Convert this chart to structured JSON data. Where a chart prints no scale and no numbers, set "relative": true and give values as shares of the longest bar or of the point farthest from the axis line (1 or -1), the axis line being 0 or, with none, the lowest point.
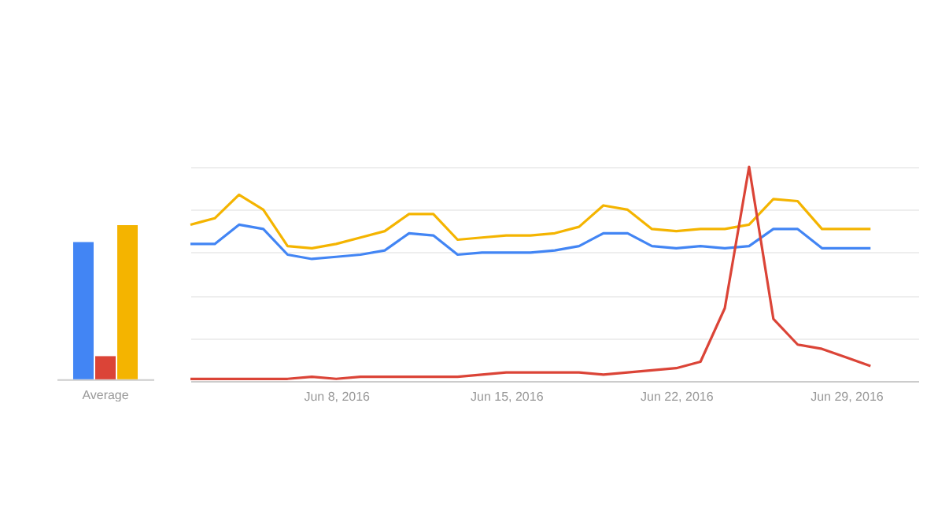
{
  "chart_data": [
    {
      "type": "bar",
      "relative": true,
      "categories": [
        "Average"
      ],
      "legend": false,
      "series": [
        {
          "color": "#4285f4",
          "values": [
            0.89
          ]
        },
        {
          "color": "#db4437",
          "values": [
            0.15
          ]
        },
        {
          "color": "#f4b400",
          "values": [
            1
          ]
        }
      ]
    },
    {
      "type": "line",
      "relative": true,
      "grid": "y",
      "legend": false,
      "line_style": "solid",
      "marker": "none",
      "x": [
        "2016-06-02",
        "2016-06-03",
        "2016-06-04",
        "2016-06-05",
        "2016-06-06",
        "2016-06-07",
        "2016-06-08",
        "2016-06-09",
        "2016-06-10",
        "2016-06-11",
        "2016-06-12",
        "2016-06-13",
        "2016-06-14",
        "2016-06-15",
        "2016-06-16",
        "2016-06-17",
        "2016-06-18",
        "2016-06-19",
        "2016-06-20",
        "2016-06-21",
        "2016-06-22",
        "2016-06-23",
        "2016-06-24",
        "2016-06-25",
        "2016-06-26",
        "2016-06-27",
        "2016-06-28",
        "2016-06-29",
        "2016-06-30"
      ],
      "xlim": [
        "2016-06-02",
        "2016-07-02"
      ],
      "xticks": [
        {
          "value": "2016-06-08",
          "label": "Jun 8, 2016"
        },
        {
          "value": "2016-06-15",
          "label": "Jun 15, 2016"
        },
        {
          "value": "2016-06-22",
          "label": "Jun 22, 2016"
        },
        {
          "value": "2016-06-29",
          "label": "Jun 29, 2016"
        }
      ],
      "series": [
        {
          "color": "#f4b400",
          "values": [
            0.73,
            0.76,
            0.87,
            0.8,
            0.63,
            0.62,
            0.64,
            0.67,
            0.7,
            0.78,
            0.78,
            0.66,
            0.67,
            0.68,
            0.68,
            0.69,
            0.72,
            0.82,
            0.8,
            0.71,
            0.7,
            0.71,
            0.71,
            0.73,
            0.85,
            0.84,
            0.71,
            0.71,
            0.71
          ]
        },
        {
          "color": "#4285f4",
          "values": [
            0.64,
            0.64,
            0.73,
            0.71,
            0.59,
            0.57,
            0.58,
            0.59,
            0.61,
            0.69,
            0.68,
            0.59,
            0.6,
            0.6,
            0.6,
            0.61,
            0.63,
            0.69,
            0.69,
            0.63,
            0.62,
            0.63,
            0.62,
            0.63,
            0.71,
            0.71,
            0.62,
            0.62,
            0.62
          ]
        },
        {
          "color": "#db4437",
          "values": [
            0.01,
            0.01,
            0.01,
            0.01,
            0.01,
            0.02,
            0.01,
            0.02,
            0.02,
            0.02,
            0.02,
            0.02,
            0.03,
            0.04,
            0.04,
            0.04,
            0.04,
            0.03,
            0.04,
            0.05,
            0.06,
            0.09,
            0.34,
            1,
            0.29,
            0.17,
            0.15,
            0.11,
            0.07
          ]
        }
      ]
    }
  ]
}
